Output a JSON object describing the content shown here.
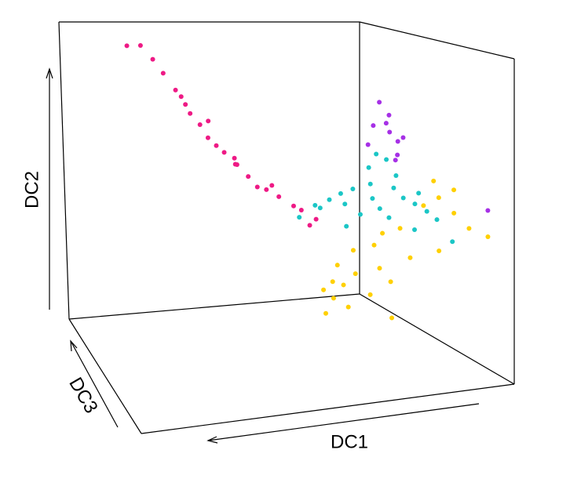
{
  "chart_data": {
    "type": "scatter3d",
    "xlabel": "DC1",
    "ylabel": "DC2",
    "zlabel": "DC3",
    "xlim": [
      0,
      1
    ],
    "ylim": [
      0,
      1
    ],
    "zlim": [
      0,
      1
    ],
    "series": [
      {
        "color": "#ee1a85",
        "x": [
          0.91,
          0.87,
          0.84,
          0.8,
          0.77,
          0.75,
          0.72,
          0.7,
          0.68,
          0.65,
          0.63,
          0.61,
          0.58,
          0.56,
          0.54,
          0.5,
          0.47,
          0.43,
          0.4,
          0.36,
          0.74,
          0.69,
          0.6,
          0.48,
          0.39
        ],
        "y": [
          1.0,
          1.0,
          0.96,
          0.91,
          0.86,
          0.82,
          0.78,
          0.75,
          0.71,
          0.68,
          0.66,
          0.63,
          0.61,
          0.58,
          0.55,
          0.53,
          0.51,
          0.48,
          0.46,
          0.43,
          0.83,
          0.77,
          0.64,
          0.54,
          0.42
        ],
        "z": [
          0.5,
          0.5,
          0.48,
          0.52,
          0.5,
          0.47,
          0.53,
          0.5,
          0.49,
          0.51,
          0.5,
          0.46,
          0.54,
          0.5,
          0.48,
          0.52,
          0.5,
          0.49,
          0.51,
          0.5,
          0.55,
          0.45,
          0.5,
          0.53,
          0.47
        ]
      },
      {
        "color": "#1bc6c6",
        "x": [
          0.41,
          0.37,
          0.34,
          0.32,
          0.29,
          0.27,
          0.25,
          0.21,
          0.19,
          0.18,
          0.15,
          0.13,
          0.12,
          0.1,
          0.07,
          0.05,
          0.03,
          0.0,
          0.0,
          0.08,
          0.13,
          0.17,
          0.2,
          0.22,
          0.27
        ],
        "y": [
          0.44,
          0.48,
          0.46,
          0.49,
          0.51,
          0.47,
          0.52,
          0.54,
          0.58,
          0.63,
          0.61,
          0.56,
          0.51,
          0.48,
          0.46,
          0.49,
          0.43,
          0.4,
          0.35,
          0.38,
          0.41,
          0.45,
          0.49,
          0.43,
          0.4
        ],
        "z": [
          0.5,
          0.48,
          0.52,
          0.5,
          0.49,
          0.51,
          0.5,
          0.47,
          0.53,
          0.5,
          0.5,
          0.48,
          0.52,
          0.5,
          0.49,
          0.51,
          0.5,
          0.5,
          0.4,
          0.47,
          0.53,
          0.5,
          0.48,
          0.52,
          0.5
        ]
      },
      {
        "color": "#a630e6",
        "x": [
          0.17,
          0.15,
          0.18,
          0.14,
          0.12,
          0.2,
          0.1,
          0.13,
          0.11,
          0.15,
          0.07
        ],
        "y": [
          0.8,
          0.76,
          0.72,
          0.7,
          0.67,
          0.66,
          0.68,
          0.63,
          0.6,
          0.73,
          0.54
        ],
        "z": [
          0.5,
          0.48,
          0.52,
          0.5,
          0.49,
          0.51,
          0.5,
          0.47,
          0.53,
          0.5,
          0.0
        ]
      },
      {
        "color": "#ffd000",
        "x": [
          0.34,
          0.32,
          0.29,
          0.31,
          0.27,
          0.33,
          0.25,
          0.2,
          0.15,
          0.11,
          0.04,
          0.2,
          0.16,
          0.12,
          0.07,
          0.2,
          0.08,
          0.18,
          0.13,
          0.2,
          0.14,
          0.16,
          0.01,
          0.24,
          0.28
        ],
        "y": [
          0.2,
          0.23,
          0.27,
          0.17,
          0.14,
          0.12,
          0.32,
          0.34,
          0.36,
          0.38,
          0.45,
          0.59,
          0.54,
          0.49,
          0.46,
          0.43,
          0.28,
          0.26,
          0.2,
          0.17,
          0.09,
          0.61,
          0.53,
          0.24,
          0.21
        ],
        "z": [
          0.5,
          0.48,
          0.52,
          0.5,
          0.49,
          0.51,
          0.5,
          0.47,
          0.53,
          0.5,
          0.5,
          0.0,
          0.0,
          0.0,
          0.0,
          0.0,
          0.5,
          0.48,
          0.52,
          0.5,
          0.49,
          0.0,
          0.5,
          0.51,
          0.5
        ]
      }
    ]
  }
}
